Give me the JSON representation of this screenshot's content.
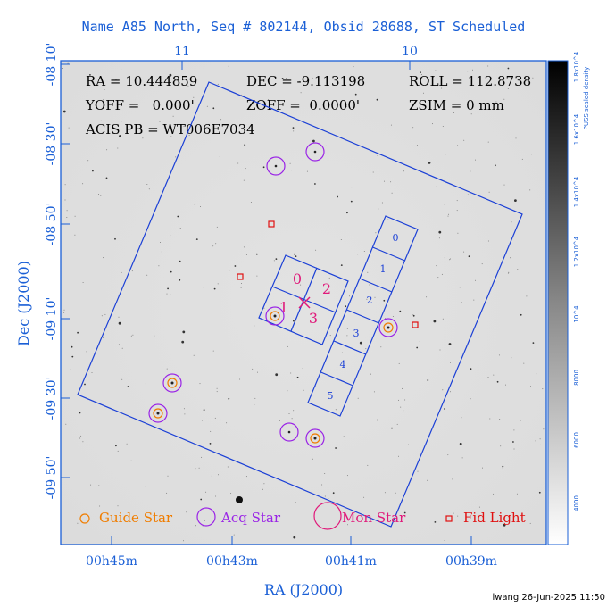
{
  "title": "Name A85 North, Seq # 802144, Obsid 28688, ST Scheduled",
  "info": {
    "ra": "RA = 10.444859",
    "dec": "DEC = -9.113198",
    "roll": "ROLL = 112.8738",
    "yoff": "YOFF =   0.000'",
    "zoff": "ZOFF =  0.0000'",
    "zsim": "ZSIM = 0 mm",
    "acis": "ACIS PB = WT006E7034"
  },
  "axes": {
    "xlabel": "RA (J2000)",
    "ylabel": "Dec (J2000)",
    "bottom_ticks": [
      "00h45m",
      "00h43m",
      "00h41m",
      "00h39m"
    ],
    "top_ticks": [
      "11",
      "10"
    ],
    "left_ticks": [
      "-08 10'",
      "-08 30'",
      "-08 50'",
      "-09 10'",
      "-09 30'",
      "-09 50'"
    ]
  },
  "colorbar": {
    "label": "PUSS scaled density",
    "ticks": [
      "1.8x10^4",
      "1.6x10^4",
      "1.4x10^4",
      "1.2x10^4",
      "10^4",
      "8000",
      "6000",
      "4000"
    ]
  },
  "aci_chips": [
    "0",
    "1",
    "2",
    "3",
    "4",
    "5"
  ],
  "acis_i_chips": [
    "0",
    "1",
    "2",
    "3"
  ],
  "legend": {
    "guide": "Guide Star",
    "acq": "Acq Star",
    "mon": "Mon Star",
    "fid": "Fid Light"
  },
  "colors": {
    "frame": "#1a5fd6",
    "guide": "#f07d00",
    "acq": "#9a24e6",
    "mon": "#e0197a",
    "fid": "#e01010"
  },
  "footer": "lwang 26-Jun-2025 11:50"
}
